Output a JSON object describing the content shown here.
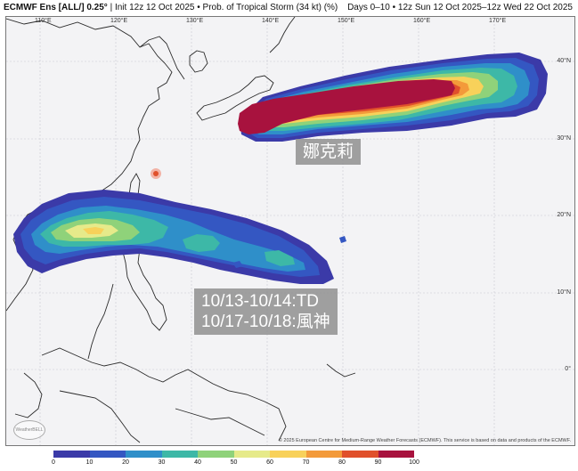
{
  "header": {
    "model": "ECMWF Ens [ALL/] 0.25°",
    "init": "Init 12z 12 Oct 2025",
    "product": "Prob. of Tropical Storm (34 kt) (%)",
    "valid": "Days 0–10 • 12z Sun 12 Oct 2025–12z Wed 22 Oct 2025"
  },
  "map": {
    "lon_labels": [
      "110°E",
      "120°E",
      "130°E",
      "140°E",
      "150°E",
      "160°E",
      "170°E"
    ],
    "lat_labels": [
      "40°N",
      "30°N",
      "20°N",
      "10°N",
      "0°"
    ],
    "storm_label": "娜克莉",
    "td_label_line1": "10/13-10/14:TD",
    "td_label_line2": "10/17-10/18:風神",
    "copyright": "© 2025 European Centre for Medium-Range Weather Forecasts (ECMWF). This service is based on data and products of the ECMWF.",
    "watermark": "WeatherBELL"
  },
  "colorbar": {
    "ticks": [
      "0",
      "10",
      "20",
      "30",
      "40",
      "50",
      "60",
      "70",
      "80",
      "90",
      "100"
    ],
    "colors": [
      "#3b3aa8",
      "#3457c2",
      "#2f8fc9",
      "#3db8a7",
      "#8fd27a",
      "#e6ea8a",
      "#f8d15a",
      "#f39a3a",
      "#e0502b",
      "#a8123e"
    ]
  }
}
